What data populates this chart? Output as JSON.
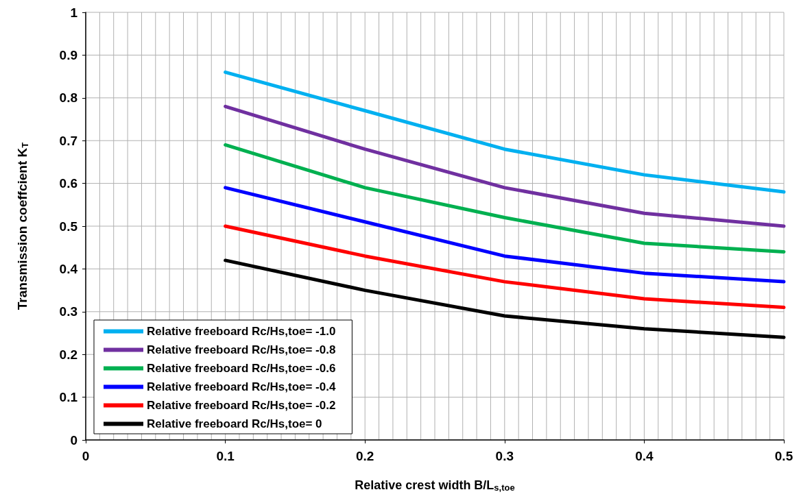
{
  "chart_data": {
    "type": "line",
    "xlabel": "Relative crest width B/L$_{s,toe}$",
    "ylabel": "Transmission coeffcient K$_{T}$",
    "x": [
      0.1,
      0.2,
      0.3,
      0.4,
      0.5
    ],
    "series": [
      {
        "name": "Relative freeboard Rc/Hs,toe= -1.0",
        "color": "#00b0f0",
        "values": [
          0.86,
          0.77,
          0.68,
          0.62,
          0.58
        ]
      },
      {
        "name": "Relative freeboard Rc/Hs,toe= -0.8",
        "color": "#7030a0",
        "values": [
          0.78,
          0.68,
          0.59,
          0.53,
          0.5
        ]
      },
      {
        "name": "Relative freeboard Rc/Hs,toe= -0.6",
        "color": "#00b050",
        "values": [
          0.69,
          0.59,
          0.52,
          0.46,
          0.44
        ]
      },
      {
        "name": "Relative freeboard Rc/Hs,toe= -0.4",
        "color": "#0000ff",
        "values": [
          0.59,
          0.51,
          0.43,
          0.39,
          0.37
        ]
      },
      {
        "name": "Relative freeboard Rc/Hs,toe= -0.2",
        "color": "#ff0000",
        "values": [
          0.5,
          0.43,
          0.37,
          0.33,
          0.31
        ]
      },
      {
        "name": "Relative freeboard Rc/Hs,toe= 0",
        "color": "#000000",
        "values": [
          0.42,
          0.35,
          0.29,
          0.26,
          0.24
        ]
      }
    ],
    "xlim": [
      0,
      0.5
    ],
    "xticks": [
      0,
      0.1,
      0.2,
      0.3,
      0.4,
      0.5
    ],
    "ylim": [
      0,
      1
    ],
    "yticks": [
      0,
      0.1,
      0.2,
      0.3,
      0.4,
      0.5,
      0.6,
      0.7,
      0.8,
      0.9,
      1
    ],
    "grid": true,
    "legend": "bottom left",
    "marker": "none",
    "line_style": "solid"
  }
}
